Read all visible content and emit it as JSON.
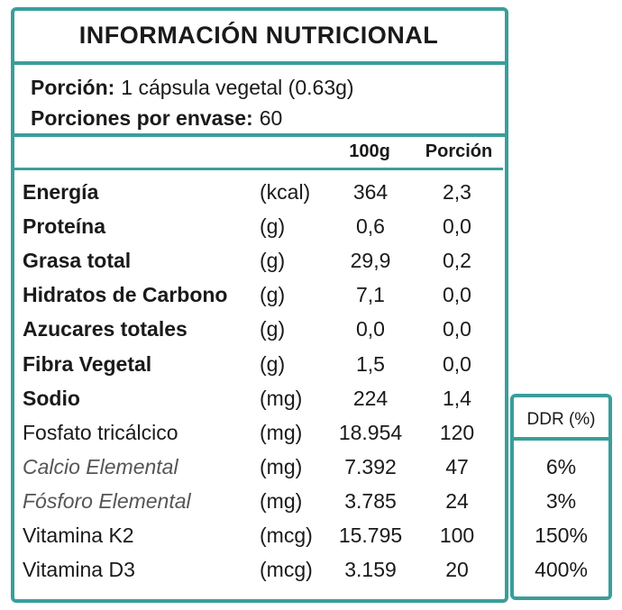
{
  "title": "INFORMACIÓN  NUTRICIONAL",
  "serving": {
    "label": "Porción:",
    "value": "1 cápsula vegetal (0.63g)"
  },
  "servings_per_container": {
    "label": "Porciones por envase:",
    "value": "60"
  },
  "table": {
    "headers": [
      "100g",
      "Porción"
    ],
    "rows": [
      [
        "Energía",
        "(kcal)",
        "364",
        "2,3"
      ],
      [
        "Proteína",
        "(g)",
        "0,6",
        "0,0"
      ],
      [
        "Grasa total",
        "(g)",
        "29,9",
        "0,2"
      ],
      [
        "Hidratos de Carbono",
        "(g)",
        "7,1",
        "0,0"
      ],
      [
        "Azucares totales",
        "(g)",
        "0,0",
        "0,0"
      ],
      [
        "Fibra Vegetal",
        "(g)",
        "1,5",
        "0,0"
      ],
      [
        "Sodio",
        "(mg)",
        "224",
        "1,4"
      ],
      [
        "Fosfato tricálcico",
        "(mg)",
        "18.954",
        "120"
      ],
      [
        "Calcio Elemental",
        "(mg)",
        "7.392",
        "47"
      ],
      [
        "Fósforo Elemental",
        "(mg)",
        "3.785",
        "24"
      ],
      [
        "Vitamina K2",
        "(mcg)",
        "15.795",
        "100"
      ],
      [
        "Vitamina D3",
        "(mcg)",
        "3.159",
        "20"
      ]
    ]
  },
  "ddr": {
    "header": "DDR (%)",
    "values": [
      "6%",
      "3%",
      "150%",
      "400%"
    ]
  }
}
